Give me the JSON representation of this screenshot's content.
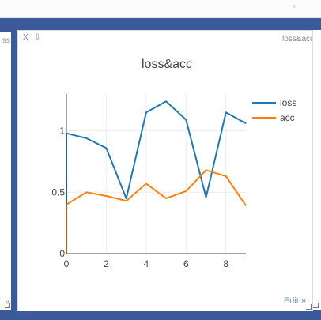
{
  "left_pane": {
    "title_fragment": "ss",
    "corner_text": "»"
  },
  "main_pane": {
    "close_label": "X",
    "download_icon": "arrow-down-icon",
    "title": "loss&acc",
    "edit_label": "Edit »"
  },
  "colors": {
    "frame": "#3c5a99",
    "loss": "#1f77b4",
    "acc": "#ff7f0e"
  },
  "chart_data": {
    "type": "line",
    "title": "loss&acc",
    "xlabel": "",
    "ylabel": "",
    "xlim": [
      0,
      9
    ],
    "ylim": [
      0,
      1.3
    ],
    "x_ticks": [
      "0",
      "2",
      "4",
      "6",
      "8"
    ],
    "y_ticks": [
      "0",
      "0.5",
      "1"
    ],
    "grid": true,
    "legend_position": "top-right",
    "series": [
      {
        "name": "loss",
        "x": [
          0,
          0,
          1,
          2,
          3,
          4,
          5,
          6,
          7,
          8,
          9
        ],
        "y": [
          0,
          0.98,
          0.94,
          0.86,
          0.45,
          1.15,
          1.24,
          1.09,
          0.46,
          1.15,
          1.06
        ]
      },
      {
        "name": "acc",
        "x": [
          0,
          0,
          1,
          2,
          3,
          4,
          5,
          6,
          7,
          8,
          9
        ],
        "y": [
          0,
          0.4,
          0.5,
          0.47,
          0.43,
          0.57,
          0.45,
          0.51,
          0.68,
          0.63,
          0.39
        ]
      }
    ]
  }
}
